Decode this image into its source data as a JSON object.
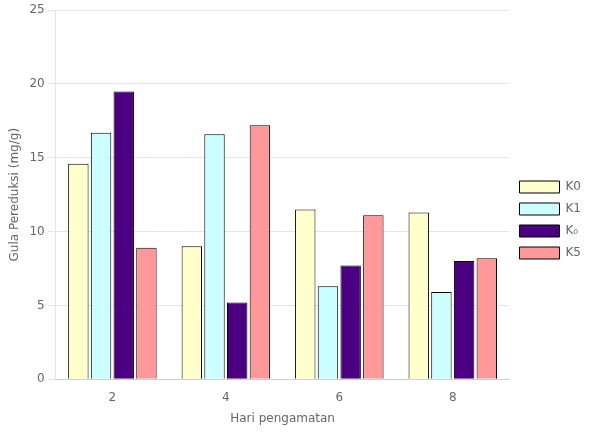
{
  "chart_data": {
    "type": "bar",
    "categories": [
      "2",
      "4",
      "6",
      "8"
    ],
    "series": [
      {
        "name": "K0",
        "color": "#FFFFCC",
        "values": [
          14.6,
          9.0,
          11.5,
          11.3
        ]
      },
      {
        "name": "K1",
        "color": "#CCFFFF",
        "values": [
          16.7,
          16.6,
          6.3,
          5.9
        ]
      },
      {
        "name": "K₀",
        "color": "#4B0082",
        "values": [
          19.5,
          5.2,
          7.7,
          8.0
        ]
      },
      {
        "name": "K5",
        "color": "#FF9999",
        "values": [
          8.9,
          17.2,
          11.1,
          8.2
        ]
      }
    ],
    "xlabel": "Hari pengamatan",
    "ylabel": "Gula Pereduksi (mg/g)",
    "ylim": [
      0,
      25
    ],
    "yticks": [
      0,
      5,
      10,
      15,
      20,
      25
    ],
    "grid": true,
    "legend": "right"
  }
}
